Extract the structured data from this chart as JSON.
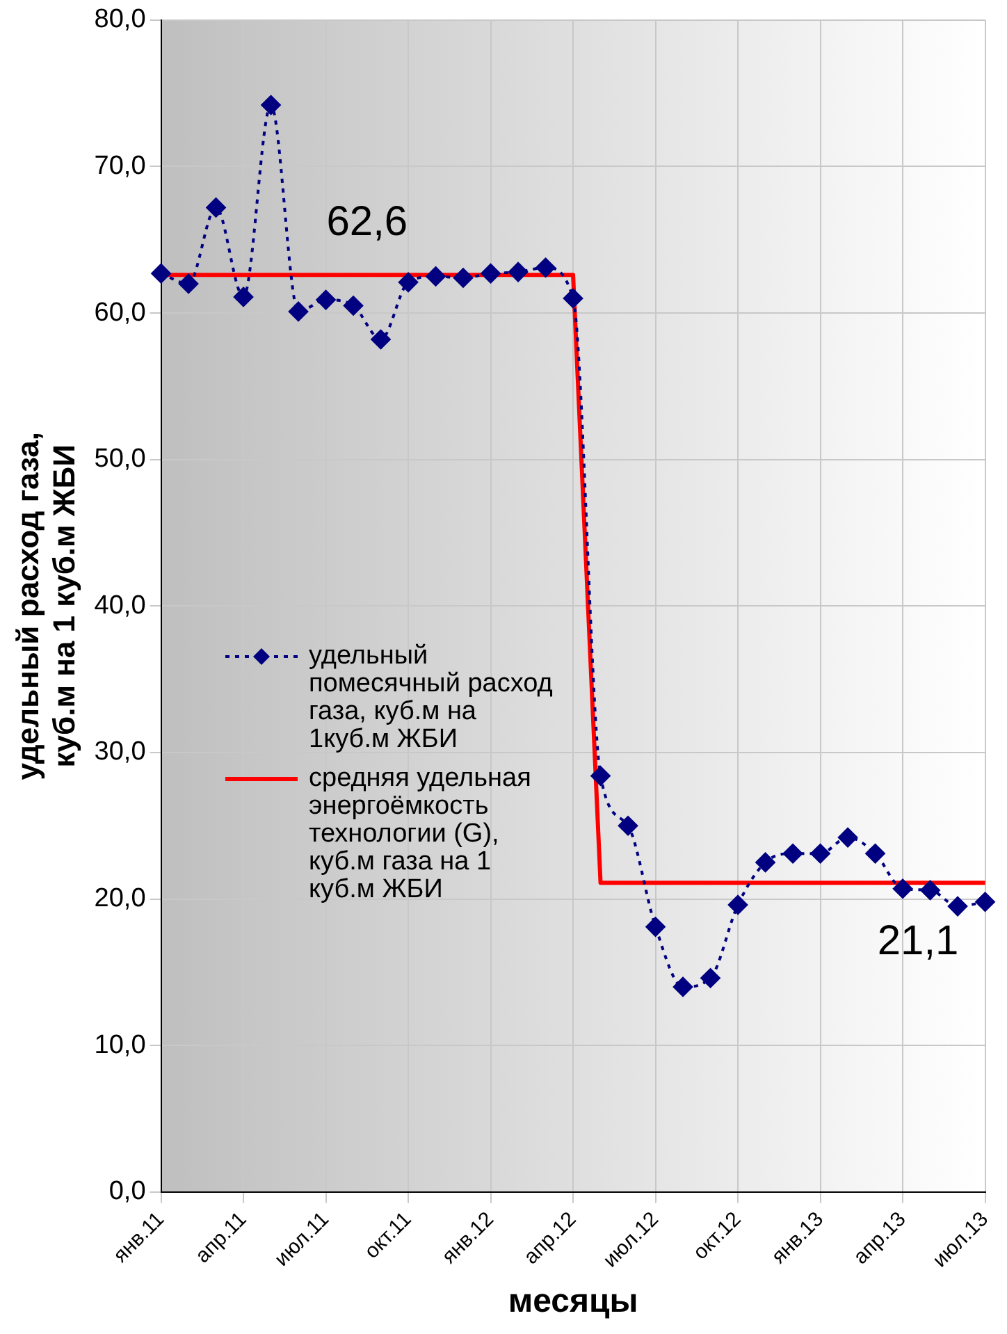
{
  "chart_data": {
    "type": "line",
    "categories": [
      "янв.11",
      null,
      null,
      "апр.11",
      null,
      null,
      "июл.11",
      null,
      null,
      "окт.11",
      null,
      null,
      "янв.12",
      null,
      null,
      "апр.12",
      null,
      null,
      "июл.12",
      null,
      null,
      "окт.12",
      null,
      null,
      "янв.13",
      null,
      null,
      "апр.13",
      null,
      null,
      "июл.13"
    ],
    "series": [
      {
        "name": "удельный помесячный расход газа, куб.м на 1куб.м ЖБИ",
        "color": "#000080",
        "marker": "diamond",
        "line_style": "dotted",
        "values": [
          62.7,
          62.0,
          67.2,
          61.1,
          74.2,
          60.1,
          60.9,
          60.5,
          58.2,
          62.1,
          62.5,
          62.4,
          62.7,
          62.8,
          63.1,
          61.0,
          28.4,
          25.0,
          18.1,
          14.0,
          14.6,
          19.6,
          22.5,
          23.1,
          23.1,
          24.2,
          23.1,
          20.7,
          20.6,
          19.5,
          19.8
        ]
      },
      {
        "name": "средняя удельная энергоёмкость технологии (G), куб.м газа на 1 куб.м ЖБИ",
        "color": "#ff0000",
        "marker": "none",
        "line_style": "solid",
        "values": [
          62.6,
          62.6,
          62.6,
          62.6,
          62.6,
          62.6,
          62.6,
          62.6,
          62.6,
          62.6,
          62.6,
          62.6,
          62.6,
          62.6,
          62.6,
          62.6,
          21.1,
          21.1,
          21.1,
          21.1,
          21.1,
          21.1,
          21.1,
          21.1,
          21.1,
          21.1,
          21.1,
          21.1,
          21.1,
          21.1,
          21.1
        ]
      }
    ],
    "xlabel": "месяцы",
    "ylabel": "удельный расход газа, куб.м на 1 куб.м ЖБИ",
    "ylim": [
      0,
      80
    ],
    "yticks": [
      {
        "value": 0,
        "label": "0,0"
      },
      {
        "value": 10,
        "label": "10,0"
      },
      {
        "value": 20,
        "label": "20,0"
      },
      {
        "value": 30,
        "label": "30,0"
      },
      {
        "value": 40,
        "label": "40,0"
      },
      {
        "value": 50,
        "label": "50,0"
      },
      {
        "value": 60,
        "label": "60,0"
      },
      {
        "value": 70,
        "label": "70,0"
      },
      {
        "value": 80,
        "label": "80,0"
      }
    ],
    "annotations": [
      {
        "text": "62,6",
        "y": 62.6
      },
      {
        "text": "21,1",
        "y": 21.1
      }
    ],
    "grid": true,
    "legend": "center"
  }
}
